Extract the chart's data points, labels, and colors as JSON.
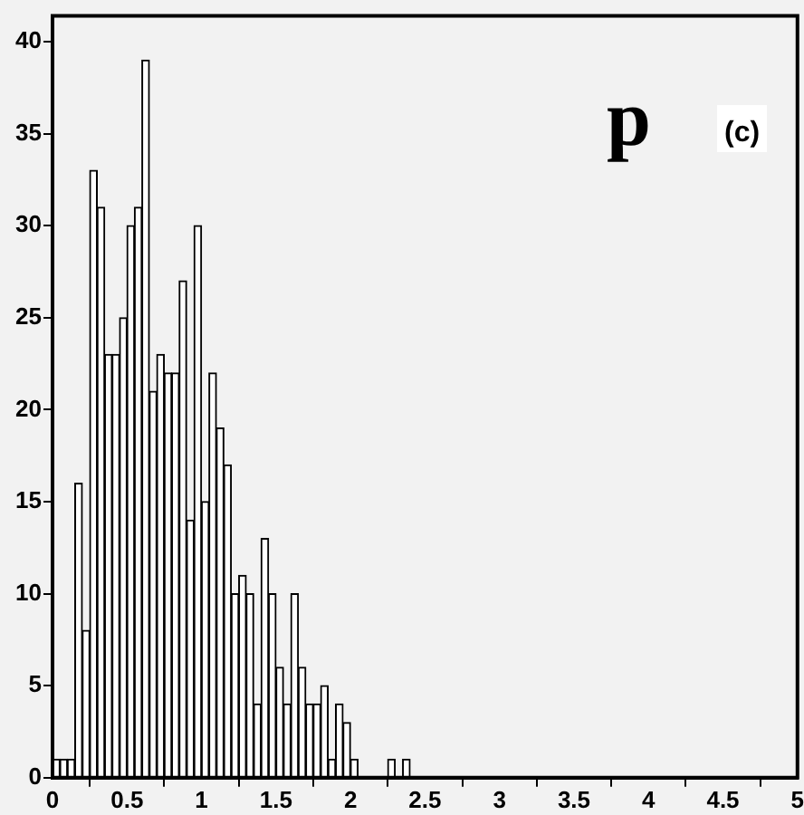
{
  "chart_data": {
    "type": "histogram",
    "annotations": [
      "p",
      "(c)"
    ],
    "color": "#ffffff",
    "bins": [
      0,
      0.05,
      0.1,
      0.15,
      0.2,
      0.25,
      0.3,
      0.35,
      0.4,
      0.45,
      0.5,
      0.55,
      0.6,
      0.65,
      0.7,
      0.75,
      0.8,
      0.85,
      0.9,
      0.95,
      1,
      1.05,
      1.1,
      1.15,
      1.2,
      1.25,
      1.3,
      1.35,
      1.4,
      1.45,
      1.5,
      1.55,
      1.6,
      1.65,
      1.7,
      1.75,
      1.8,
      1.85,
      1.9,
      1.95,
      2,
      2.05,
      2.1,
      2.15,
      2.2,
      2.25,
      2.3,
      2.35,
      2.4,
      2.45,
      2.5,
      2.55,
      2.6,
      2.65,
      2.7,
      2.75,
      2.8,
      2.85,
      2.9,
      2.95,
      3,
      3.05,
      3.1,
      3.15,
      3.2,
      3.25,
      3.3,
      3.35,
      3.4,
      3.45,
      3.5,
      3.55,
      3.6,
      3.65,
      3.7,
      3.75,
      3.8,
      3.85,
      3.9,
      3.95,
      4,
      4.05,
      4.1,
      4.15,
      4.2,
      4.25,
      4.3,
      4.35,
      4.4,
      4.45,
      4.5,
      4.55,
      4.6,
      4.65,
      4.7,
      4.75,
      4.8,
      4.85,
      4.9,
      4.95,
      5
    ],
    "values": [
      1,
      1,
      1,
      16,
      8,
      33,
      31,
      23,
      23,
      25,
      30,
      31,
      39,
      21,
      23,
      22,
      22,
      27,
      14,
      30,
      15,
      22,
      19,
      17,
      10,
      11,
      10,
      4,
      13,
      10,
      6,
      4,
      10,
      6,
      4,
      4,
      5,
      1,
      4,
      3,
      1,
      0,
      0,
      0,
      0,
      1,
      0,
      1,
      0,
      0,
      0,
      0,
      0,
      0,
      0,
      0,
      0,
      0,
      0,
      0,
      0,
      0,
      0,
      0,
      0,
      0,
      0,
      0,
      0,
      0,
      0,
      0,
      0,
      0,
      0,
      0,
      0,
      0,
      0,
      0,
      0,
      0,
      0,
      0,
      0,
      0,
      0,
      0,
      0,
      0,
      0,
      0,
      0,
      0,
      0,
      0,
      0,
      0,
      0,
      0
    ],
    "xlim": [
      0,
      5
    ],
    "ylim": [
      0,
      41.4
    ],
    "xticks": [
      0,
      0.5,
      1,
      1.5,
      2,
      2.5,
      3,
      3.5,
      4,
      4.5,
      5
    ],
    "yticks": [
      0,
      5,
      10,
      15,
      20,
      25,
      30,
      35,
      40
    ],
    "grid": false
  }
}
